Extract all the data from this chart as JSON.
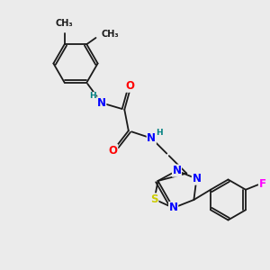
{
  "background_color": "#ebebeb",
  "bond_color": "#1a1a1a",
  "atom_colors": {
    "N": "#0000ff",
    "O": "#ff0000",
    "S": "#cccc00",
    "F": "#ff00ff",
    "H": "#008080",
    "C": "#1a1a1a"
  },
  "font_size_atoms": 8.5,
  "font_size_h": 6.5,
  "font_size_methyl": 7.0
}
